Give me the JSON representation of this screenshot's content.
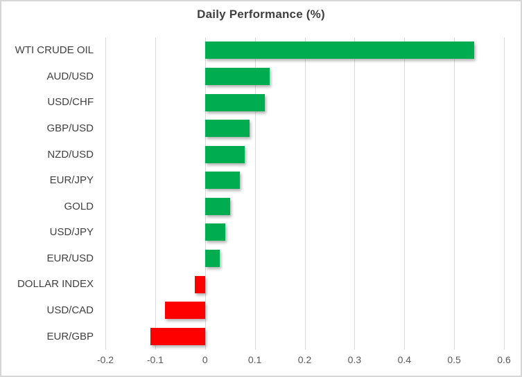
{
  "chart_data": {
    "type": "bar",
    "orientation": "horizontal",
    "title": "Daily Performance (%)",
    "categories": [
      "WTI CRUDE OIL",
      "AUD/USD",
      "USD/CHF",
      "GBP/USD",
      "NZD/USD",
      "EUR/JPY",
      "GOLD",
      "USD/JPY",
      "EUR/USD",
      "DOLLAR INDEX",
      "USD/CAD",
      "EUR/GBP"
    ],
    "values": [
      0.54,
      0.13,
      0.12,
      0.09,
      0.08,
      0.07,
      0.05,
      0.04,
      0.03,
      -0.02,
      -0.08,
      -0.11
    ],
    "xlim": [
      -0.2,
      0.6
    ],
    "x_ticks": [
      -0.2,
      -0.1,
      0,
      0.1,
      0.2,
      0.3,
      0.4,
      0.5,
      0.6
    ],
    "x_tick_labels": [
      "-0.2",
      "-0.1",
      "0",
      "0.1",
      "0.2",
      "0.3",
      "0.4",
      "0.5",
      "0.6"
    ],
    "grid": "vertical-only",
    "legend": "none",
    "colors": {
      "positive": "#00ac50",
      "negative": "#ff0000",
      "gridline": "#d9d9d9",
      "title_text": "#3f3f3f",
      "category_text": "#404040",
      "tick_text": "#595959",
      "frame_border": "#d6d6d6",
      "background": "#ffffff"
    }
  }
}
